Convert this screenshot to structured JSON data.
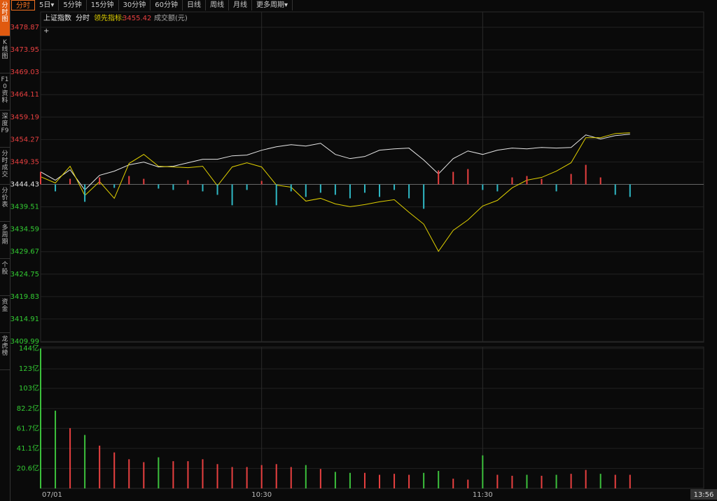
{
  "sidebar_tabs": [
    "分时图",
    "K线图",
    "F10资料",
    "深度F9",
    "分时成交",
    "分价表",
    "多周期",
    "个股",
    "资金",
    "龙虎榜"
  ],
  "toolbar": {
    "tabs": [
      "分时",
      "5日▾",
      "5分钟",
      "15分钟",
      "30分钟",
      "60分钟",
      "日线",
      "周线",
      "月线",
      "更多周期▾"
    ]
  },
  "chart_data": [
    {
      "type": "line",
      "title": "上证指数",
      "subtitle": "分时",
      "readout_label": "领先指标:",
      "readout": 3455.42,
      "x": [
        0,
        4,
        8,
        12,
        16,
        20,
        24,
        28,
        32,
        36,
        40,
        44,
        48,
        52,
        56,
        60,
        64,
        68,
        72,
        76,
        80,
        84,
        88,
        92,
        96,
        100,
        104,
        108,
        112,
        116,
        120,
        124,
        128,
        132,
        136,
        140,
        144,
        148,
        152,
        156,
        160
      ],
      "xlim": [
        0,
        180
      ],
      "xticks": [
        {
          "value": 0,
          "label": "07/01"
        },
        {
          "value": 60,
          "label": "10:30"
        },
        {
          "value": 120,
          "label": "11:30"
        }
      ],
      "cursor_time": "13:56",
      "ylim": [
        3409.99,
        3478.87
      ],
      "yticks": [
        3478.87,
        3473.95,
        3469.03,
        3464.11,
        3459.19,
        3454.27,
        3449.35,
        3444.43,
        3439.51,
        3434.59,
        3429.67,
        3424.75,
        3419.83,
        3414.91,
        3409.99
      ],
      "prev_close": 3444.43,
      "grid": true,
      "up_color": "#e84040",
      "down_color": "#2fb8c4",
      "flat_color": "#e6e6e6",
      "down_label_color": "#33cc33",
      "series": [
        {
          "color": "#e6e6e6",
          "values": [
            3447.18,
            3445.35,
            3447.64,
            3443.21,
            3446.42,
            3447.33,
            3448.71,
            3449.32,
            3448.25,
            3448.4,
            3449.17,
            3449.93,
            3449.93,
            3450.69,
            3450.85,
            3451.92,
            3452.68,
            3453.14,
            3452.83,
            3453.44,
            3451.0,
            3450.08,
            3450.54,
            3451.92,
            3452.22,
            3452.38,
            3449.78,
            3446.72,
            3450.08,
            3451.76,
            3451.0,
            3451.92,
            3452.38,
            3452.22,
            3452.53,
            3452.38,
            3452.53,
            3455.28,
            3454.36,
            3455.13,
            3455.43
          ]
        },
        {
          "color": "#e0d000",
          "values": [
            3446.11,
            3444.74,
            3448.4,
            3441.99,
            3445.04,
            3441.37,
            3449.01,
            3451.0,
            3448.4,
            3448.25,
            3448.1,
            3448.4,
            3444.12,
            3448.25,
            3449.17,
            3448.25,
            3444.28,
            3443.82,
            3440.76,
            3441.37,
            3440.15,
            3439.54,
            3440.0,
            3440.61,
            3441.07,
            3438.32,
            3435.72,
            3429.76,
            3434.35,
            3436.64,
            3439.69,
            3440.92,
            3443.67,
            3445.35,
            3445.96,
            3447.33,
            3449.17,
            3454.67,
            3454.67,
            3455.58,
            3455.74
          ]
        },
        {
          "type": "bar",
          "values": [
            2.75,
            -1.53,
            1.22,
            -3.82,
            1.53,
            -0.76,
            1.83,
            1.22,
            -0.92,
            -1.22,
            0.92,
            -1.53,
            -2.29,
            -4.58,
            -1.22,
            0.76,
            -4.58,
            -1.53,
            -2.75,
            -1.83,
            -2.29,
            -3.06,
            -1.83,
            -2.75,
            -1.22,
            -3.06,
            -5.35,
            3.06,
            2.75,
            3.36,
            -1.22,
            -1.53,
            1.53,
            1.83,
            1.22,
            -1.53,
            2.29,
            4.28,
            1.53,
            -2.29,
            -2.75
          ]
        }
      ]
    },
    {
      "type": "bar",
      "title": "成交额(元)",
      "ylim": [
        0,
        144
      ],
      "yticks": [
        {
          "value": 144,
          "label": "144亿"
        },
        {
          "value": 123,
          "label": "123亿"
        },
        {
          "value": 103,
          "label": "103亿"
        },
        {
          "value": 82.2,
          "label": "82.2亿"
        },
        {
          "value": 61.7,
          "label": "61.7亿"
        },
        {
          "value": 41.1,
          "label": "41.1亿"
        },
        {
          "value": 20.6,
          "label": "20.6亿"
        }
      ],
      "grid": true,
      "up_color": "#e84040",
      "down_color": "#3cc03c",
      "label_color": "#33cc33",
      "values": [
        144,
        80,
        62,
        55,
        44,
        37,
        30,
        27,
        32,
        28,
        28,
        30,
        25,
        22,
        22,
        24,
        25,
        22,
        24,
        20,
        17,
        16,
        16,
        14,
        15,
        14,
        16,
        18,
        10,
        9,
        34,
        14,
        13,
        14,
        13,
        14,
        15,
        19,
        15,
        14,
        14
      ]
    }
  ]
}
